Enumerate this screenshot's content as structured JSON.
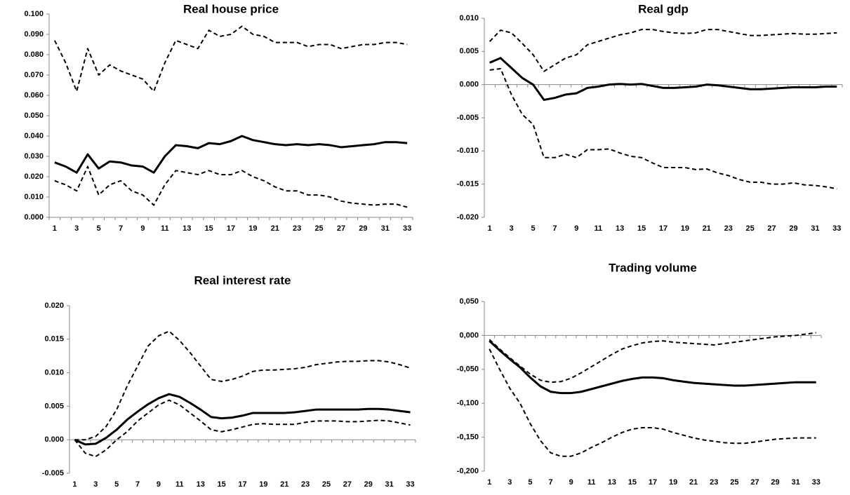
{
  "chart_data": [
    {
      "type": "line",
      "title": "Real house price",
      "categories": [
        1,
        null,
        3,
        null,
        5,
        null,
        7,
        null,
        9,
        null,
        11,
        null,
        13,
        null,
        15,
        null,
        17,
        null,
        19,
        null,
        21,
        null,
        23,
        null,
        25,
        null,
        27,
        null,
        29,
        null,
        31,
        null,
        33
      ],
      "ylim": [
        0,
        0.1
      ],
      "yticks": [
        {
          "value": 0,
          "label": "0.000"
        },
        {
          "value": 0.01,
          "label": "0.010"
        },
        {
          "value": 0.02,
          "label": "0.020"
        },
        {
          "value": 0.03,
          "label": "0.030"
        },
        {
          "value": 0.04,
          "label": "0.040"
        },
        {
          "value": 0.05,
          "label": "0.050"
        },
        {
          "value": 0.06,
          "label": "0.060"
        },
        {
          "value": 0.07,
          "label": "0.070"
        },
        {
          "value": 0.08,
          "label": "0.080"
        },
        {
          "value": 0.09,
          "label": "0.090"
        },
        {
          "value": 0.1,
          "label": "0.100"
        }
      ],
      "series": [
        {
          "color": "#000000",
          "style": "dashed",
          "values": [
            0.087,
            0.076,
            0.062,
            0.083,
            0.07,
            0.075,
            0.072,
            0.07,
            0.068,
            0.062,
            0.076,
            0.087,
            0.085,
            0.083,
            0.092,
            0.089,
            0.09,
            0.094,
            0.09,
            0.089,
            0.086,
            0.086,
            0.086,
            0.084,
            0.085,
            0.085,
            0.083,
            0.084,
            0.085,
            0.085,
            0.086,
            0.086,
            0.085
          ]
        },
        {
          "color": "#000000",
          "style": "solid",
          "values": [
            0.027,
            0.025,
            0.022,
            0.031,
            0.024,
            0.0275,
            0.027,
            0.0255,
            0.025,
            0.022,
            0.03,
            0.0355,
            0.035,
            0.034,
            0.0365,
            0.036,
            0.0375,
            0.04,
            0.038,
            0.037,
            0.036,
            0.0355,
            0.036,
            0.0355,
            0.036,
            0.0355,
            0.0345,
            0.035,
            0.0355,
            0.036,
            0.037,
            0.037,
            0.0365
          ]
        },
        {
          "color": "#000000",
          "style": "dashed",
          "values": [
            0.018,
            0.016,
            0.013,
            0.025,
            0.011,
            0.016,
            0.018,
            0.013,
            0.011,
            0.006,
            0.016,
            0.023,
            0.022,
            0.021,
            0.023,
            0.021,
            0.021,
            0.023,
            0.02,
            0.018,
            0.015,
            0.013,
            0.013,
            0.011,
            0.011,
            0.01,
            0.008,
            0.007,
            0.0065,
            0.006,
            0.0065,
            0.0065,
            0.005
          ]
        }
      ]
    },
    {
      "type": "line",
      "title": "Real gdp",
      "categories": [
        1,
        null,
        3,
        null,
        5,
        null,
        7,
        null,
        9,
        null,
        11,
        null,
        13,
        null,
        15,
        null,
        17,
        null,
        19,
        null,
        21,
        null,
        23,
        null,
        25,
        null,
        27,
        null,
        29,
        null,
        31,
        null,
        33
      ],
      "ylim": [
        -0.02,
        0.01
      ],
      "yticks": [
        {
          "value": -0.02,
          "label": "-0.020"
        },
        {
          "value": -0.015,
          "label": "-0.015"
        },
        {
          "value": -0.01,
          "label": "-0.010"
        },
        {
          "value": -0.005,
          "label": "-0.005"
        },
        {
          "value": 0,
          "label": "0.000"
        },
        {
          "value": 0.005,
          "label": "0.005"
        },
        {
          "value": 0.01,
          "label": "0.010"
        }
      ],
      "series": [
        {
          "color": "#000000",
          "style": "dashed",
          "values": [
            0.0065,
            0.0082,
            0.0078,
            0.0062,
            0.0045,
            0.002,
            0.003,
            0.004,
            0.0045,
            0.006,
            0.0065,
            0.007,
            0.0075,
            0.0078,
            0.0083,
            0.0083,
            0.008,
            0.0078,
            0.0077,
            0.0078,
            0.0083,
            0.0083,
            0.008,
            0.0077,
            0.0074,
            0.0074,
            0.0075,
            0.0076,
            0.0077,
            0.0076,
            0.0076,
            0.0077,
            0.0078
          ]
        },
        {
          "color": "#000000",
          "style": "solid",
          "values": [
            0.0033,
            0.004,
            0.0025,
            0.001,
            0,
            -0.0023,
            -0.002,
            -0.0015,
            -0.0013,
            -0.0005,
            -0.0003,
            0,
            0.0001,
            0,
            0.0001,
            -0.0002,
            -0.0005,
            -0.0005,
            -0.0004,
            -0.0003,
            0,
            -0.0001,
            -0.0003,
            -0.0005,
            -0.0007,
            -0.0007,
            -0.0006,
            -0.0005,
            -0.0004,
            -0.0004,
            -0.0004,
            -0.0003,
            -0.0003
          ]
        },
        {
          "color": "#000000",
          "style": "dashed",
          "values": [
            0.0022,
            0.0024,
            -0.0015,
            -0.0045,
            -0.006,
            -0.011,
            -0.011,
            -0.0105,
            -0.011,
            -0.0098,
            -0.0098,
            -0.0097,
            -0.0103,
            -0.0108,
            -0.011,
            -0.0118,
            -0.0125,
            -0.0125,
            -0.0125,
            -0.0128,
            -0.0127,
            -0.0133,
            -0.0137,
            -0.0143,
            -0.0147,
            -0.0147,
            -0.015,
            -0.015,
            -0.0148,
            -0.0151,
            -0.0152,
            -0.0154,
            -0.0157
          ]
        }
      ]
    },
    {
      "type": "line",
      "title": "Real interest rate",
      "categories": [
        1,
        null,
        3,
        null,
        5,
        null,
        7,
        null,
        9,
        null,
        11,
        null,
        13,
        null,
        15,
        null,
        17,
        null,
        19,
        null,
        21,
        null,
        23,
        null,
        25,
        null,
        27,
        null,
        29,
        null,
        31,
        null,
        33
      ],
      "ylim": [
        -0.005,
        0.02
      ],
      "yticks": [
        {
          "value": -0.005,
          "label": "-0.005"
        },
        {
          "value": 0,
          "label": "0.000"
        },
        {
          "value": 0.005,
          "label": "0.005"
        },
        {
          "value": 0.01,
          "label": "0.010"
        },
        {
          "value": 0.015,
          "label": "0.015"
        },
        {
          "value": 0.02,
          "label": "0.020"
        }
      ],
      "series": [
        {
          "color": "#000000",
          "style": "dashed",
          "values": [
            0,
            0,
            0.0005,
            0.002,
            0.0045,
            0.008,
            0.011,
            0.014,
            0.0155,
            0.0162,
            0.0148,
            0.013,
            0.011,
            0.009,
            0.0087,
            0.009,
            0.0095,
            0.0102,
            0.0104,
            0.0104,
            0.0105,
            0.0106,
            0.0108,
            0.0112,
            0.0114,
            0.0116,
            0.0117,
            0.0117,
            0.0118,
            0.0118,
            0.0116,
            0.0112,
            0.0107
          ]
        },
        {
          "color": "#000000",
          "style": "solid",
          "values": [
            0,
            -0.0007,
            -0.0006,
            0.0003,
            0.0015,
            0.003,
            0.0042,
            0.0053,
            0.0062,
            0.0068,
            0.0064,
            0.0055,
            0.0045,
            0.0034,
            0.0032,
            0.0033,
            0.0036,
            0.004,
            0.004,
            0.004,
            0.004,
            0.0041,
            0.0043,
            0.0045,
            0.0045,
            0.0045,
            0.0045,
            0.0045,
            0.0046,
            0.0046,
            0.0045,
            0.0043,
            0.0041
          ]
        },
        {
          "color": "#000000",
          "style": "dashed",
          "values": [
            0,
            -0.002,
            -0.0025,
            -0.0015,
            0,
            0.0012,
            0.0028,
            0.004,
            0.0052,
            0.0059,
            0.0052,
            0.004,
            0.0028,
            0.0015,
            0.0012,
            0.0015,
            0.0019,
            0.0023,
            0.0024,
            0.0023,
            0.0023,
            0.0023,
            0.0026,
            0.0028,
            0.0028,
            0.0028,
            0.0027,
            0.0027,
            0.0028,
            0.0029,
            0.0028,
            0.0025,
            0.0022
          ]
        }
      ]
    },
    {
      "type": "line",
      "title": "Trading volume",
      "categories": [
        1,
        null,
        3,
        null,
        5,
        null,
        7,
        null,
        9,
        null,
        11,
        null,
        13,
        null,
        15,
        null,
        17,
        null,
        19,
        null,
        21,
        null,
        23,
        null,
        25,
        null,
        27,
        null,
        29,
        null,
        31,
        null,
        33
      ],
      "ylim": [
        -0.2,
        0.05
      ],
      "yticks": [
        {
          "value": -0.2,
          "label": "-0,200"
        },
        {
          "value": -0.15,
          "label": "-0,150"
        },
        {
          "value": -0.1,
          "label": "-0,100"
        },
        {
          "value": -0.05,
          "label": "-0,050"
        },
        {
          "value": 0,
          "label": "0,000"
        },
        {
          "value": 0.05,
          "label": "0,050"
        }
      ],
      "series": [
        {
          "color": "#000000",
          "style": "dashed",
          "values": [
            -0.006,
            -0.02,
            -0.033,
            -0.045,
            -0.057,
            -0.066,
            -0.069,
            -0.068,
            -0.063,
            -0.055,
            -0.046,
            -0.037,
            -0.028,
            -0.02,
            -0.015,
            -0.011,
            -0.009,
            -0.008,
            -0.01,
            -0.011,
            -0.012,
            -0.013,
            -0.014,
            -0.012,
            -0.01,
            -0.008,
            -0.006,
            -0.004,
            -0.002,
            -0.001,
            0,
            0.002,
            0.004
          ]
        },
        {
          "color": "#000000",
          "style": "solid",
          "values": [
            -0.008,
            -0.022,
            -0.035,
            -0.047,
            -0.062,
            -0.075,
            -0.083,
            -0.085,
            -0.085,
            -0.083,
            -0.079,
            -0.075,
            -0.071,
            -0.067,
            -0.064,
            -0.062,
            -0.062,
            -0.063,
            -0.066,
            -0.068,
            -0.07,
            -0.071,
            -0.072,
            -0.073,
            -0.074,
            -0.074,
            -0.073,
            -0.072,
            -0.071,
            -0.07,
            -0.069,
            -0.069,
            -0.069
          ]
        },
        {
          "color": "#000000",
          "style": "dashed",
          "values": [
            -0.02,
            -0.05,
            -0.078,
            -0.1,
            -0.13,
            -0.155,
            -0.173,
            -0.178,
            -0.178,
            -0.173,
            -0.165,
            -0.158,
            -0.15,
            -0.143,
            -0.138,
            -0.136,
            -0.136,
            -0.138,
            -0.143,
            -0.147,
            -0.151,
            -0.154,
            -0.156,
            -0.158,
            -0.159,
            -0.159,
            -0.157,
            -0.155,
            -0.153,
            -0.152,
            -0.151,
            -0.151,
            -0.151
          ]
        }
      ]
    }
  ]
}
